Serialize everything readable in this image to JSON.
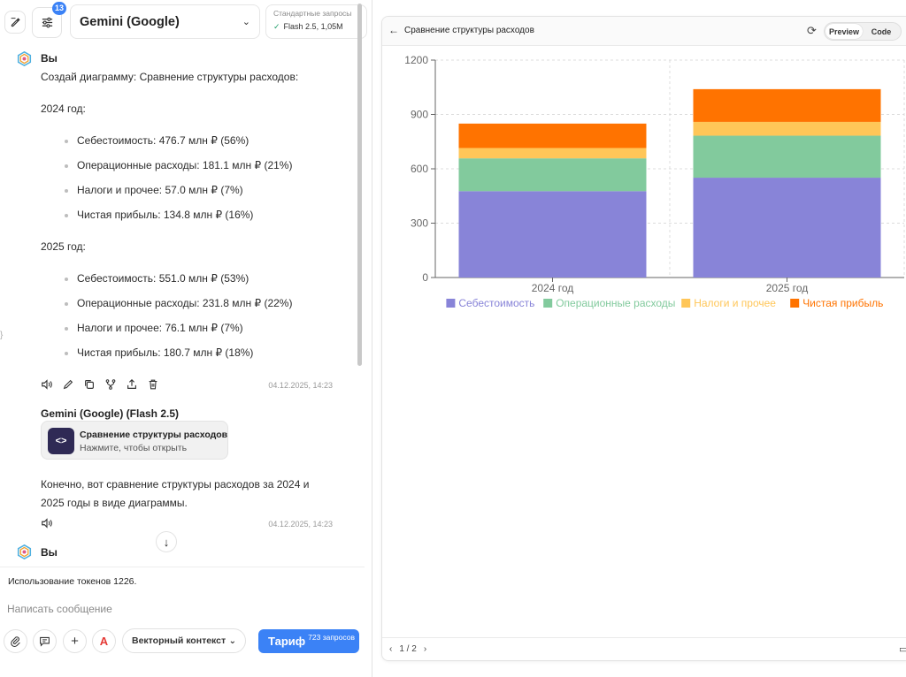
{
  "topbar": {
    "edit_icon": "edit-icon",
    "settings_badge": "13",
    "model_name": "Gemini (Google)",
    "std_title": "Стандартные запросы",
    "std_value": "Flash 2.5, 1,05M"
  },
  "user_message": {
    "author": "Вы",
    "intro": "Создай диаграмму: Сравнение структуры расходов:",
    "year1_title": "2024 год:",
    "year1_items": [
      "Себестоимость: 476.7 млн ₽ (56%)",
      "Операционные расходы: 181.1 млн ₽ (21%)",
      "Налоги и прочее: 57.0 млн ₽ (7%)",
      "Чистая прибыль: 134.8 млн ₽ (16%)"
    ],
    "year2_title": "2025 год:",
    "year2_items": [
      "Себестоимость: 551.0 млн ₽ (53%)",
      "Операционные расходы: 231.8 млн ₽ (22%)",
      "Налоги и прочее: 76.1 млн ₽ (7%)",
      "Чистая прибыль: 180.7 млн ₽ (18%)"
    ],
    "timestamp": "04.12.2025, 14:23"
  },
  "assistant_message": {
    "author": "Gemini (Google) (Flash 2.5)",
    "artifact_title": "Сравнение структуры расходов",
    "artifact_subtitle": "Нажмите, чтобы открыть",
    "artifact_icon_glyph": "<>",
    "text_line1": "Конечно, вот сравнение структуры расходов за 2024 и",
    "text_line2": "2025 годы в виде диаграммы.",
    "timestamp": "04.12.2025, 14:23"
  },
  "next_message": {
    "author": "Вы"
  },
  "composer": {
    "tokens": "Использование токенов 1226.",
    "placeholder": "Написать сообщение",
    "vector_context": "Векторный контекст",
    "tariff_label": "Тариф",
    "tariff_requests": "723 запросов",
    "font_button_glyph": "A"
  },
  "preview": {
    "title": "Сравнение структуры расходов",
    "tab_preview": "Preview",
    "tab_code": "Code",
    "pager": "1 / 2"
  },
  "colors": {
    "cost": "#8884d8",
    "opex": "#82ca9d",
    "tax": "#ffc658",
    "profit": "#ff7300",
    "accent": "#3b82f6"
  },
  "chart_data": {
    "type": "bar",
    "stacked": true,
    "title": "",
    "categories": [
      "2024 год",
      "2025 год"
    ],
    "series": [
      {
        "name": "Себестоимость",
        "values": [
          476.7,
          551.0
        ],
        "color": "#8884d8"
      },
      {
        "name": "Операционные расходы",
        "values": [
          181.1,
          231.8
        ],
        "color": "#82ca9d"
      },
      {
        "name": "Налоги и прочее",
        "values": [
          57.0,
          76.1
        ],
        "color": "#ffc658"
      },
      {
        "name": "Чистая прибыль",
        "values": [
          134.8,
          180.7
        ],
        "color": "#ff7300"
      }
    ],
    "ylim": [
      0,
      1200
    ],
    "yticks": [
      "0",
      "300",
      "600",
      "900",
      "1200"
    ],
    "grid": true,
    "legend": "bottom"
  }
}
